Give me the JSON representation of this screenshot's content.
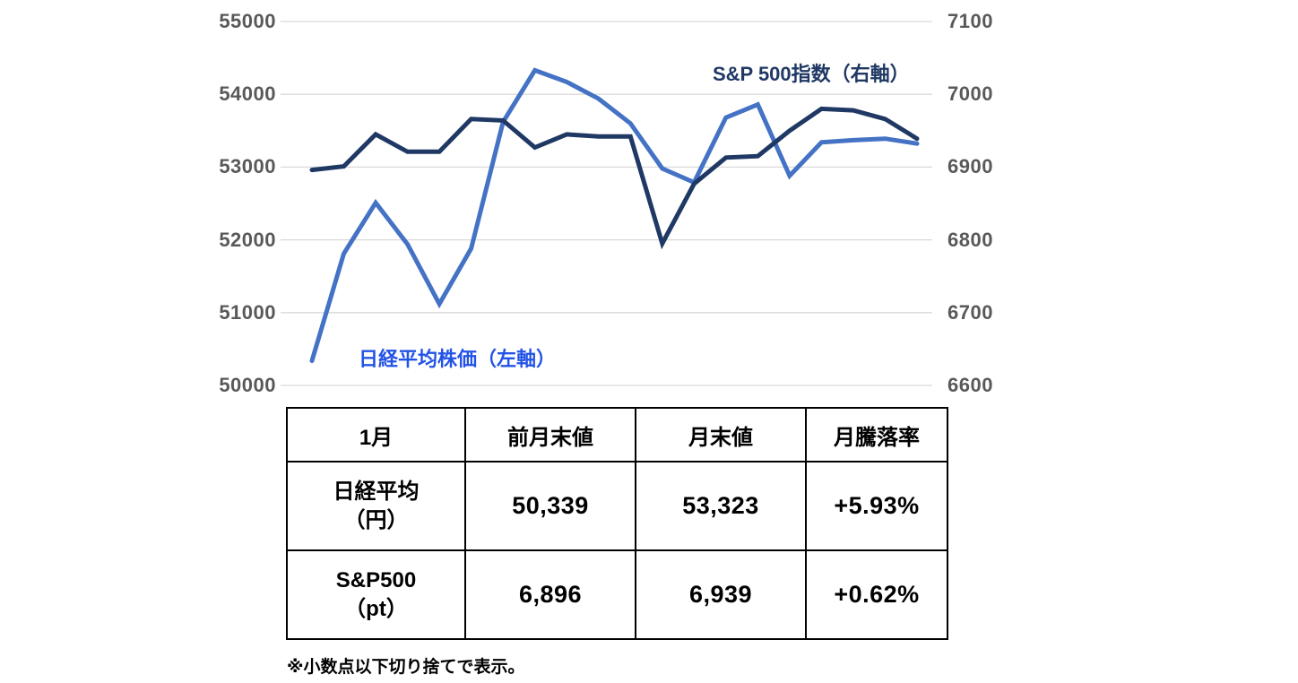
{
  "chart_data": {
    "type": "line",
    "title": "",
    "x_points": 20,
    "grid": true,
    "series": [
      {
        "name": "日経平均株価（左軸）",
        "axis": "left",
        "color": "#4472C4",
        "values": [
          50339,
          51810,
          52510,
          51940,
          51120,
          51880,
          53620,
          54330,
          54170,
          53940,
          53600,
          52980,
          52790,
          53680,
          53860,
          52880,
          53340,
          53370,
          53390,
          53323
        ]
      },
      {
        "name": "S&P 500指数（右軸）",
        "axis": "right",
        "color": "#1F3864",
        "values": [
          6896,
          6901,
          6945,
          6921,
          6921,
          6966,
          6964,
          6927,
          6945,
          6942,
          6942,
          6795,
          6877,
          6913,
          6915,
          6950,
          6980,
          6978,
          6966,
          6939
        ]
      }
    ],
    "left_axis": {
      "min": 50000,
      "max": 55000,
      "ticks": [
        "55000",
        "54000",
        "53000",
        "52000",
        "51000",
        "50000"
      ]
    },
    "right_axis": {
      "min": 6600,
      "max": 7100,
      "ticks": [
        "7100",
        "7000",
        "6900",
        "6800",
        "6700",
        "6600"
      ]
    },
    "legend_position": "inline-labels"
  },
  "table": {
    "headers": [
      "1月",
      "前月末値",
      "月末値",
      "月騰落率"
    ],
    "rows": [
      {
        "label": "日経平均\n（円）",
        "cells": [
          "50,339",
          "53,323",
          "+5.93%"
        ]
      },
      {
        "label": "S&P500\n（pt）",
        "cells": [
          "6,896",
          "6,939",
          "+0.62%"
        ]
      }
    ]
  },
  "footnote": "※小数点以下切り捨てで表示。",
  "colors": {
    "nikkei_line": "#4472C4",
    "sp500_line": "#1F3864",
    "nikkei_label": "#2353E6",
    "sp500_label": "#1F3864",
    "axis_text": "#595959",
    "gridline": "#D9D9D9",
    "table_border": "#000000"
  }
}
